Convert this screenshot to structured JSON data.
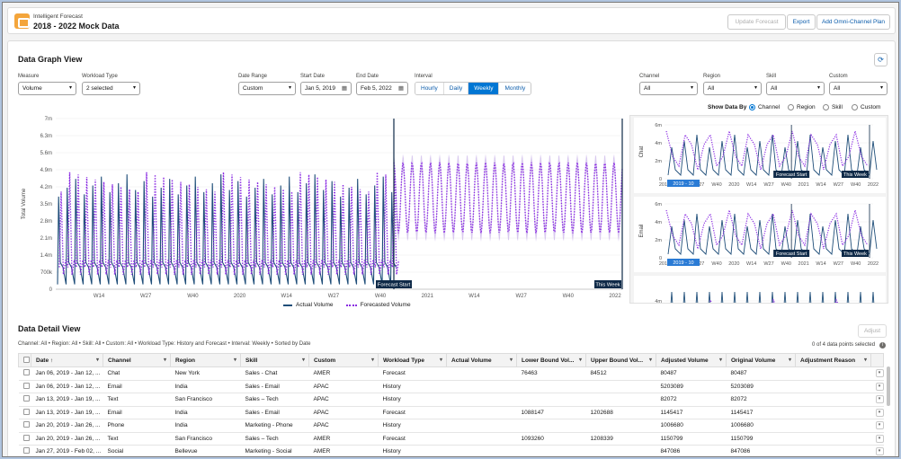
{
  "header": {
    "subtitle": "Intelligent Forecast",
    "title": "2018 - 2022 Mock Data",
    "buttons": {
      "update": "Update Forecast",
      "export": "Export",
      "add_plan": "Add Omni-Channel Plan"
    }
  },
  "graph_view": {
    "title": "Data Graph View",
    "filters": {
      "measure": {
        "label": "Measure",
        "value": "Volume"
      },
      "workload_type": {
        "label": "Workload Type",
        "value": "2 selected"
      },
      "date_range": {
        "label": "Date Range",
        "value": "Custom"
      },
      "start_date": {
        "label": "Start Date",
        "value": "Jan 5, 2019"
      },
      "end_date": {
        "label": "End Date",
        "value": "Feb 5, 2022"
      },
      "interval": {
        "label": "Interval",
        "options": [
          "Hourly",
          "Daily",
          "Weekly",
          "Monthly"
        ],
        "selected": "Weekly"
      },
      "channel": {
        "label": "Channel",
        "value": "All"
      },
      "region": {
        "label": "Region",
        "value": "All"
      },
      "skill": {
        "label": "Skill",
        "value": "All"
      },
      "custom": {
        "label": "Custom",
        "value": "All"
      }
    },
    "show_data_by": {
      "label": "Show Data By",
      "options": [
        "Channel",
        "Region",
        "Skill",
        "Custom"
      ],
      "selected": "Channel"
    },
    "legend": {
      "actual": "Actual Volume",
      "forecasted": "Forecasted Volume"
    },
    "colors": {
      "actual": "#1f4e79",
      "forecast": "#8a2be2",
      "band": "#c9b3e8",
      "marker": "#0f2a48"
    }
  },
  "chart_data": [
    {
      "type": "line",
      "ylabel": "Total Volume",
      "y_ticks": [
        "0",
        "700k",
        "1.4m",
        "2.1m",
        "2.8m",
        "3.5m",
        "4.2m",
        "4.9m",
        "5.6m",
        "6.3m",
        "7m"
      ],
      "x_ticks": [
        "W14",
        "W27",
        "W40",
        "2020",
        "W14",
        "W27",
        "W40",
        "2021",
        "W14",
        "W27",
        "W40",
        "2022"
      ],
      "annotations": [
        "Forecast Start",
        "This Week"
      ],
      "series": [
        {
          "name": "Actual Volume",
          "pattern": "weekly sawtooth 2019-2020, peaks ~4.7m"
        },
        {
          "name": "Forecasted Volume",
          "pattern": "weekly oscillation, peaks ~5.6m after forecast start"
        }
      ]
    },
    {
      "type": "line",
      "panels": [
        {
          "ylabel": "Chat",
          "y_ticks": [
            "0",
            "2m",
            "4m",
            "6m"
          ],
          "x_ticks": [
            "2019",
            "W14",
            "W27",
            "W40",
            "2020",
            "W14",
            "W27",
            "W40",
            "2021",
            "W14",
            "W27",
            "W40",
            "2022"
          ],
          "annotations": [
            "2019 - 10",
            "Forecast Start",
            "This Week"
          ]
        },
        {
          "ylabel": "Email",
          "y_ticks": [
            "0",
            "2m",
            "4m",
            "6m"
          ],
          "x_ticks": [
            "2019",
            "W14",
            "W27",
            "W40",
            "2020",
            "W14",
            "W27",
            "W40",
            "2021",
            "W14",
            "W27",
            "W40",
            "2022"
          ],
          "annotations": [
            "2019 - 10",
            "Forecast Start",
            "This Week"
          ]
        },
        {
          "ylabel": "",
          "y_ticks": [
            "4m"
          ],
          "x_ticks": [],
          "annotations": []
        }
      ]
    }
  ],
  "detail_view": {
    "title": "Data Detail View",
    "adjust": "Adjust",
    "filters_text": "Channel: All • Region: All • Skill: All • Custom: All • Workload Type: History and Forecast • Interval: Weekly • Sorted by Date",
    "selection_count": "0 of 4 data points selected",
    "columns": [
      "Date",
      "Channel",
      "Region",
      "Skill",
      "Custom",
      "Workload Type",
      "Actual Volume",
      "Lower Bound Vol...",
      "Upper Bound Vol...",
      "Adjusted Volume",
      "Original Volume",
      "Adjustment Reason"
    ],
    "sort_arrow": "↑",
    "rows": [
      [
        "Jan 06, 2019 - Jan 12, ...",
        "Chat",
        "New York",
        "Sales - Chat",
        "AMER",
        "Forecast",
        "",
        "76463",
        "84512",
        "80487",
        "80487",
        ""
      ],
      [
        "Jan 06, 2019 - Jan 12, ...",
        "Email",
        "India",
        "Sales - Email",
        "APAC",
        "History",
        "",
        "",
        "",
        "5203089",
        "5203089",
        ""
      ],
      [
        "Jan 13, 2019 - Jan 19, ...",
        "Text",
        "San Francisco",
        "Sales – Tech",
        "APAC",
        "History",
        "",
        "",
        "",
        "82072",
        "82072",
        ""
      ],
      [
        "Jan 13, 2019 - Jan 19, ...",
        "Email",
        "India",
        "Sales - Email",
        "APAC",
        "Forecast",
        "",
        "1088147",
        "1202688",
        "1145417",
        "1145417",
        ""
      ],
      [
        "Jan 20, 2019 - Jan 26, ...",
        "Phone",
        "India",
        "Marketing - Phone",
        "APAC",
        "History",
        "",
        "",
        "",
        "1006680",
        "1006680",
        ""
      ],
      [
        "Jan 20, 2019 - Jan 26, ...",
        "Text",
        "San Francisco",
        "Sales – Tech",
        "AMER",
        "Forecast",
        "",
        "1093260",
        "1208339",
        "1150799",
        "1150799",
        ""
      ],
      [
        "Jan 27, 2019 - Feb 02, ...",
        "Social",
        "Bellevue",
        "Marketing - Social",
        "AMER",
        "History",
        "",
        "",
        "",
        "847086",
        "847086",
        ""
      ]
    ]
  }
}
